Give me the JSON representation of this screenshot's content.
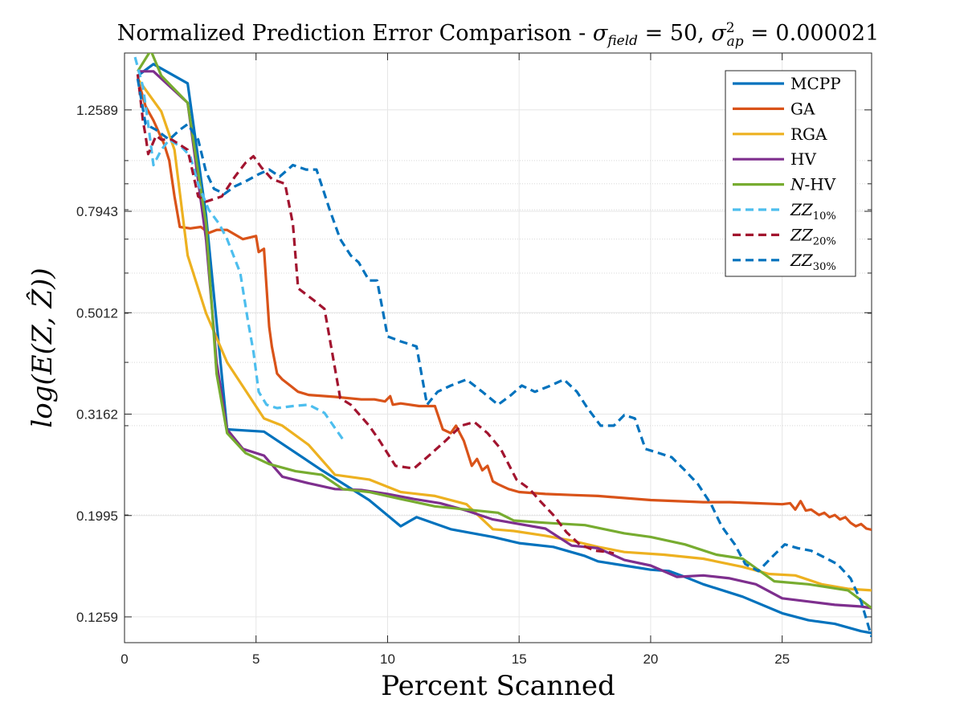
{
  "chart_data": {
    "type": "line",
    "title": "Normalized Prediction Error Comparison - σ_field = 50, σ²_ap = 0.000021",
    "title_parts": {
      "prefix": "Normalized Prediction Error Comparison - ",
      "sigma": "σ",
      "field_sub": "field",
      "eq1": " = 50, ",
      "sigma2": "σ",
      "ap_sup": "2",
      "ap_sub": "ap",
      "eq2": " = 0.000021"
    },
    "xlabel": "Percent Scanned",
    "ylabel": "log(E(Z, Ẑ))",
    "xlim": [
      0,
      28.4
    ],
    "ylim": [
      0.112,
      1.63
    ],
    "yscale": "log",
    "xticks": [
      0,
      5,
      10,
      15,
      20,
      25
    ],
    "xtick_labels": [
      "0",
      "5",
      "10",
      "15",
      "20",
      "25"
    ],
    "yticks": [
      0.1259,
      0.1995,
      0.3162,
      0.5012,
      0.7943,
      1.2589
    ],
    "ytick_labels": [
      "0.1259",
      "0.1995",
      "0.3162",
      "0.5012",
      "0.7943",
      "1.2589"
    ],
    "grid": true,
    "legend_position": "top-right",
    "series": [
      {
        "name": "MCPP",
        "label_main": "MCPP",
        "label_sub": "",
        "color": "#0072BD",
        "dash": "solid",
        "x": [
          0.5,
          1.1,
          2.4,
          3.1,
          3.9,
          5.3,
          7.5,
          9.3,
          10.5,
          11.1,
          12.4,
          14,
          15,
          16.3,
          17.5,
          18,
          19,
          20,
          20.7,
          21.3,
          22,
          23.5,
          25,
          26,
          27,
          28,
          28.4
        ],
        "y": [
          1.47,
          1.55,
          1.42,
          0.78,
          0.295,
          0.292,
          0.245,
          0.214,
          0.19,
          0.198,
          0.1875,
          0.181,
          0.176,
          0.173,
          0.166,
          0.162,
          0.159,
          0.156,
          0.155,
          0.151,
          0.146,
          0.138,
          0.128,
          0.124,
          0.122,
          0.118,
          0.117
        ]
      },
      {
        "name": "GA",
        "label_main": "GA",
        "label_sub": "",
        "color": "#D95319",
        "dash": "solid",
        "x": [
          0.5,
          0.8,
          1.1,
          1.5,
          1.7,
          1.9,
          2.1,
          2.5,
          2.9,
          3.2,
          3.5,
          3.9,
          4.5,
          5,
          5.1,
          5.3,
          5.5,
          5.6,
          5.8,
          6,
          6.3,
          6.6,
          7,
          8,
          9,
          9.5,
          9.9,
          10.1,
          10.2,
          10.5,
          11.2,
          11.8,
          12.1,
          12.4,
          12.6,
          12.9,
          13.2,
          13.4,
          13.6,
          13.8,
          14,
          14.2,
          14.6,
          15,
          16,
          17,
          18,
          20,
          22,
          23,
          24,
          25,
          25.3,
          25.5,
          25.7,
          25.9,
          26.1,
          26.4,
          26.6,
          26.8,
          27,
          27.2,
          27.4,
          27.6,
          27.8,
          28,
          28.2,
          28.4
        ],
        "y": [
          1.45,
          1.28,
          1.2,
          1.08,
          1.0,
          0.85,
          0.74,
          0.735,
          0.74,
          0.72,
          0.73,
          0.73,
          0.7,
          0.71,
          0.66,
          0.67,
          0.47,
          0.43,
          0.38,
          0.37,
          0.36,
          0.35,
          0.345,
          0.342,
          0.338,
          0.338,
          0.335,
          0.343,
          0.33,
          0.332,
          0.328,
          0.328,
          0.295,
          0.29,
          0.3,
          0.28,
          0.25,
          0.258,
          0.245,
          0.25,
          0.233,
          0.23,
          0.225,
          0.222,
          0.22,
          0.219,
          0.218,
          0.214,
          0.212,
          0.212,
          0.211,
          0.21,
          0.211,
          0.205,
          0.213,
          0.204,
          0.205,
          0.2,
          0.202,
          0.198,
          0.2,
          0.196,
          0.198,
          0.193,
          0.19,
          0.192,
          0.188,
          0.187
        ]
      },
      {
        "name": "RGA",
        "label_main": "RGA",
        "label_sub": "",
        "color": "#EDB120",
        "dash": "solid",
        "x": [
          0.5,
          1.4,
          1.9,
          2.4,
          3.1,
          3.9,
          5.3,
          6,
          7,
          8,
          9.3,
          10.5,
          11.8,
          13,
          14,
          14.8,
          16,
          17,
          18,
          19,
          20.5,
          22,
          23.5,
          24.5,
          25.5,
          26.5,
          27.5,
          28.4
        ],
        "y": [
          1.45,
          1.25,
          1.05,
          0.65,
          0.5,
          0.4,
          0.31,
          0.3,
          0.275,
          0.24,
          0.235,
          0.222,
          0.218,
          0.21,
          0.1875,
          0.186,
          0.182,
          0.178,
          0.173,
          0.169,
          0.167,
          0.164,
          0.158,
          0.153,
          0.152,
          0.146,
          0.143,
          0.142
        ]
      },
      {
        "name": "HV",
        "label_main": "HV",
        "label_sub": "",
        "color": "#7E2F8E",
        "dash": "solid",
        "x": [
          0.5,
          1.1,
          2.4,
          3.1,
          3.5,
          3.9,
          4.5,
          5.3,
          6,
          7,
          8,
          9,
          10,
          11,
          12,
          13,
          14,
          15,
          16,
          17,
          18,
          19,
          20,
          21,
          22,
          23,
          24,
          25,
          26,
          27,
          28,
          28.4
        ],
        "y": [
          1.5,
          1.5,
          1.3,
          0.7,
          0.4,
          0.295,
          0.27,
          0.262,
          0.238,
          0.231,
          0.225,
          0.224,
          0.22,
          0.215,
          0.211,
          0.204,
          0.196,
          0.192,
          0.188,
          0.174,
          0.172,
          0.163,
          0.159,
          0.151,
          0.152,
          0.15,
          0.146,
          0.137,
          0.135,
          0.133,
          0.132,
          0.131
        ]
      },
      {
        "name": "N-HV",
        "label_main": "N",
        "label_sub": "-HV",
        "color": "#77AC30",
        "dash": "solid",
        "x": [
          0.5,
          1,
          1.4,
          2.4,
          3.1,
          3.5,
          3.9,
          4.6,
          5.5,
          6.5,
          7.5,
          8.3,
          9.3,
          10.5,
          11.8,
          13,
          14.2,
          14.8,
          16,
          17.5,
          19,
          20,
          21.3,
          22.5,
          23.5,
          24.7,
          26,
          27.5,
          28.4
        ],
        "y": [
          1.5,
          1.65,
          1.47,
          1.3,
          0.75,
          0.38,
          0.29,
          0.265,
          0.252,
          0.244,
          0.24,
          0.225,
          0.222,
          0.215,
          0.208,
          0.205,
          0.202,
          0.195,
          0.193,
          0.191,
          0.184,
          0.181,
          0.175,
          0.167,
          0.164,
          0.148,
          0.146,
          0.142,
          0.131
        ]
      },
      {
        "name": "ZZ10%",
        "label_main": "ZZ",
        "label_sub": "10%",
        "color": "#4DBEEE",
        "dash": "dash",
        "x": [
          0.4,
          0.7,
          0.9,
          1.1,
          1.4,
          1.7,
          2.2,
          2.5,
          2.8,
          3.2,
          3.6,
          3.9,
          4.4,
          4.7,
          4.9,
          5.1,
          5.4,
          5.8,
          6.4,
          7,
          7.6,
          8.3
        ],
        "y": [
          1.6,
          1.4,
          1.18,
          0.98,
          1.05,
          1.1,
          1.06,
          1.02,
          0.9,
          0.8,
          0.75,
          0.7,
          0.6,
          0.48,
          0.42,
          0.35,
          0.33,
          0.325,
          0.328,
          0.33,
          0.318,
          0.282
        ]
      },
      {
        "name": "ZZ20%",
        "label_main": "ZZ",
        "label_sub": "20%",
        "color": "#A2142F",
        "dash": "dash",
        "x": [
          0.5,
          0.7,
          0.8,
          0.9,
          1.2,
          1.4,
          1.8,
          2.4,
          2.8,
          3.1,
          3.7,
          4.2,
          4.6,
          4.9,
          5.2,
          5.6,
          6.1,
          6.4,
          6.6,
          7.2,
          7.6,
          8.2,
          8.6,
          9.3,
          9.7,
          10.3,
          11,
          11.5,
          12.2,
          12.8,
          13.3,
          13.8,
          14.3,
          14.9,
          15.4,
          15.8,
          16.3,
          16.8,
          17.3,
          17.9,
          18.4,
          18.6
        ],
        "y": [
          1.48,
          1.2,
          1.12,
          1.03,
          1.12,
          1.1,
          1.1,
          1.05,
          0.85,
          0.83,
          0.85,
          0.93,
          0.99,
          1.02,
          0.97,
          0.92,
          0.9,
          0.75,
          0.56,
          0.53,
          0.51,
          0.34,
          0.33,
          0.3,
          0.28,
          0.25,
          0.247,
          0.26,
          0.28,
          0.3,
          0.305,
          0.29,
          0.27,
          0.235,
          0.225,
          0.213,
          0.2,
          0.185,
          0.175,
          0.17,
          0.169,
          0.168
        ]
      },
      {
        "name": "ZZ30%",
        "label_main": "ZZ",
        "label_sub": "30%",
        "color": "#0072BD",
        "dash": "dash",
        "x": [
          0.5,
          0.8,
          1.2,
          1.7,
          2.1,
          2.4,
          2.8,
          3.1,
          3.4,
          3.8,
          4.2,
          4.6,
          5.1,
          5.5,
          5.9,
          6.4,
          6.9,
          7.3,
          7.8,
          8.2,
          8.6,
          8.9,
          9.3,
          9.6,
          10,
          10.5,
          11.1,
          11.5,
          11.9,
          12.4,
          13,
          13.6,
          14.2,
          14.7,
          15.1,
          15.6,
          16.2,
          16.7,
          17.2,
          17.6,
          18.1,
          18.6,
          19,
          19.4,
          19.8,
          20.3,
          20.8,
          21.3,
          21.8,
          22.3,
          22.7,
          23.2,
          23.6,
          24.1,
          24.6,
          25.1,
          25.6,
          26.1,
          26.6,
          27.1,
          27.6,
          28,
          28.4
        ],
        "y": [
          1.45,
          1.18,
          1.15,
          1.1,
          1.15,
          1.18,
          1.1,
          0.95,
          0.88,
          0.86,
          0.89,
          0.91,
          0.94,
          0.96,
          0.93,
          0.98,
          0.96,
          0.96,
          0.8,
          0.7,
          0.65,
          0.63,
          0.58,
          0.58,
          0.45,
          0.44,
          0.43,
          0.33,
          0.35,
          0.36,
          0.37,
          0.35,
          0.33,
          0.345,
          0.36,
          0.35,
          0.36,
          0.37,
          0.35,
          0.325,
          0.3,
          0.3,
          0.315,
          0.31,
          0.27,
          0.265,
          0.26,
          0.245,
          0.23,
          0.21,
          0.19,
          0.175,
          0.16,
          0.155,
          0.165,
          0.175,
          0.172,
          0.17,
          0.165,
          0.16,
          0.15,
          0.135,
          0.115
        ]
      }
    ]
  }
}
